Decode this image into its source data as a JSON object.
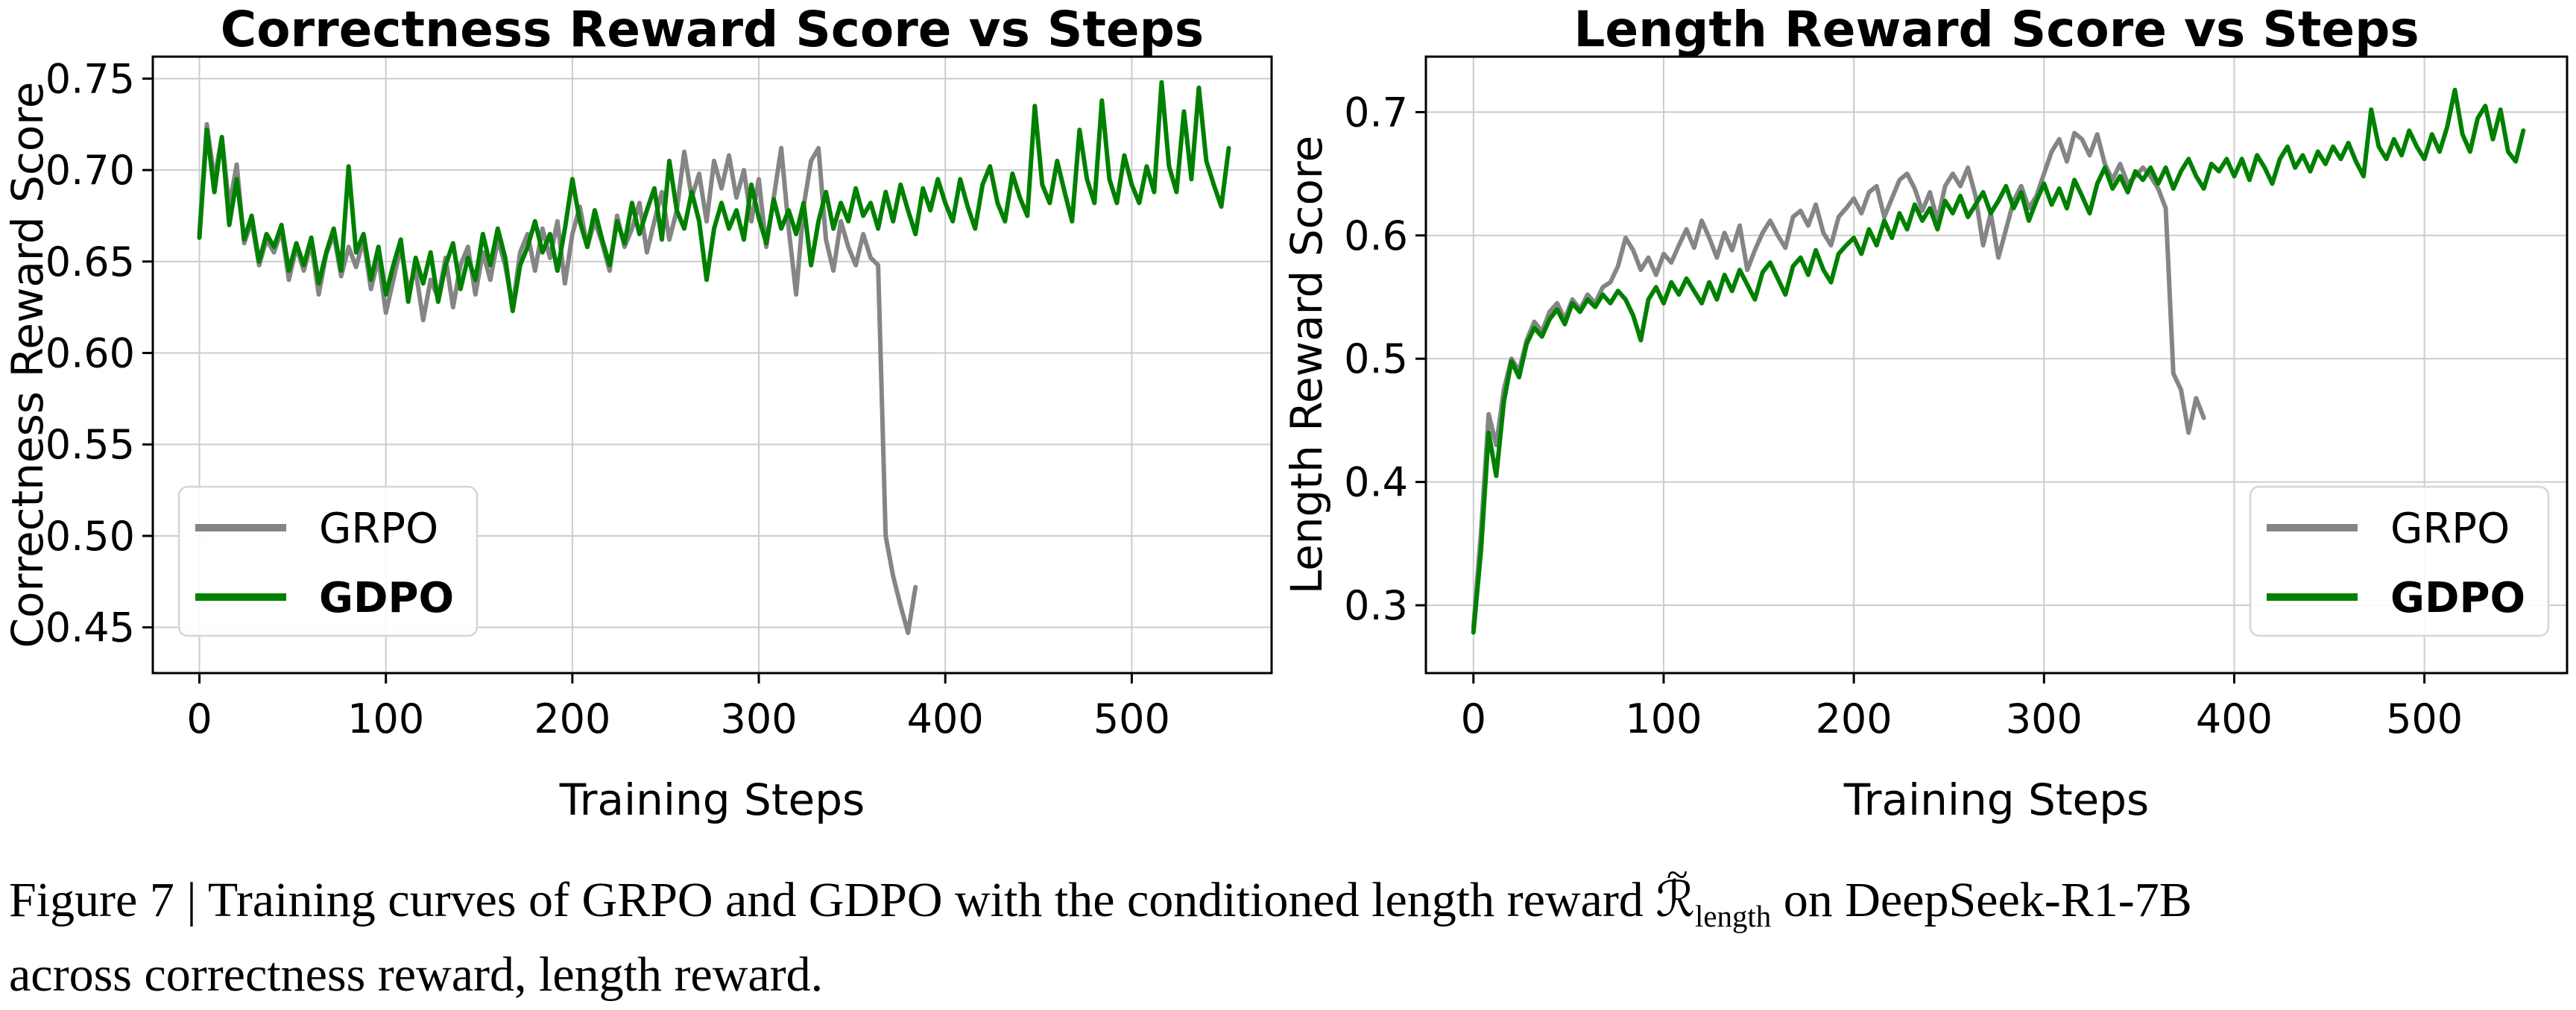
{
  "figure": {
    "caption": {
      "line1_before_math": "Figure 7 | Training curves of GRPO and GDPO with the conditioned length reward ",
      "math_symbol": "ℛ",
      "math_tilde": "~",
      "math_subscript": "length",
      "line1_after_math": " on DeepSeek-R1-7B",
      "line2": "across correctness reward, length reward."
    }
  },
  "colors": {
    "grpo": "#858585",
    "gdpo": "#008000",
    "grid": "#cccccc",
    "spine": "#000000",
    "legend_border": "#d5d5d5",
    "background": "#ffffff"
  },
  "chart_data": [
    {
      "type": "line",
      "title": "Correctness Reward Score vs Steps",
      "xlabel": "Training Steps",
      "ylabel": "Correctness Reward Score",
      "xlim": [
        -25,
        575
      ],
      "ylim": [
        0.425,
        0.762
      ],
      "xticks": [
        0,
        100,
        200,
        300,
        400,
        500
      ],
      "xtick_labels": [
        "0",
        "100",
        "200",
        "300",
        "400",
        "500"
      ],
      "yticks": [
        0.45,
        0.5,
        0.55,
        0.6,
        0.65,
        0.7,
        0.75
      ],
      "ytick_labels": [
        "0.45",
        "0.50",
        "0.55",
        "0.60",
        "0.65",
        "0.70",
        "0.75"
      ],
      "grid": true,
      "legend_position": "lower left",
      "series": [
        {
          "name": "GRPO",
          "color_key": "grpo",
          "bold": false,
          "x_start": 0,
          "x_step": 4,
          "values": [
            0.665,
            0.725,
            0.695,
            0.718,
            0.68,
            0.703,
            0.66,
            0.672,
            0.648,
            0.662,
            0.655,
            0.667,
            0.64,
            0.658,
            0.645,
            0.66,
            0.632,
            0.654,
            0.665,
            0.642,
            0.658,
            0.647,
            0.662,
            0.635,
            0.652,
            0.622,
            0.64,
            0.658,
            0.635,
            0.645,
            0.618,
            0.64,
            0.63,
            0.652,
            0.625,
            0.648,
            0.658,
            0.632,
            0.655,
            0.64,
            0.662,
            0.648,
            0.625,
            0.655,
            0.665,
            0.645,
            0.668,
            0.652,
            0.672,
            0.638,
            0.665,
            0.68,
            0.658,
            0.672,
            0.66,
            0.645,
            0.675,
            0.658,
            0.668,
            0.682,
            0.655,
            0.672,
            0.688,
            0.662,
            0.678,
            0.71,
            0.685,
            0.698,
            0.672,
            0.705,
            0.69,
            0.708,
            0.685,
            0.7,
            0.672,
            0.695,
            0.658,
            0.685,
            0.712,
            0.668,
            0.632,
            0.68,
            0.705,
            0.712,
            0.662,
            0.645,
            0.672,
            0.658,
            0.648,
            0.665,
            0.652,
            0.648,
            0.5,
            0.478,
            0.462,
            0.447,
            0.472
          ]
        },
        {
          "name": "GDPO",
          "color_key": "gdpo",
          "bold": true,
          "x_start": 0,
          "x_step": 4,
          "values": [
            0.663,
            0.722,
            0.688,
            0.718,
            0.67,
            0.695,
            0.662,
            0.675,
            0.65,
            0.665,
            0.658,
            0.67,
            0.645,
            0.66,
            0.648,
            0.663,
            0.638,
            0.655,
            0.668,
            0.645,
            0.702,
            0.655,
            0.665,
            0.64,
            0.658,
            0.632,
            0.648,
            0.662,
            0.628,
            0.652,
            0.638,
            0.655,
            0.628,
            0.648,
            0.66,
            0.635,
            0.652,
            0.64,
            0.665,
            0.648,
            0.668,
            0.652,
            0.623,
            0.648,
            0.658,
            0.672,
            0.655,
            0.665,
            0.645,
            0.668,
            0.695,
            0.672,
            0.658,
            0.678,
            0.662,
            0.648,
            0.672,
            0.66,
            0.682,
            0.665,
            0.678,
            0.69,
            0.662,
            0.705,
            0.678,
            0.668,
            0.688,
            0.672,
            0.64,
            0.668,
            0.682,
            0.668,
            0.678,
            0.662,
            0.692,
            0.674,
            0.66,
            0.684,
            0.668,
            0.678,
            0.665,
            0.682,
            0.648,
            0.672,
            0.688,
            0.668,
            0.682,
            0.672,
            0.69,
            0.675,
            0.682,
            0.668,
            0.688,
            0.672,
            0.692,
            0.678,
            0.665,
            0.69,
            0.678,
            0.695,
            0.682,
            0.672,
            0.695,
            0.68,
            0.668,
            0.692,
            0.702,
            0.682,
            0.672,
            0.698,
            0.685,
            0.675,
            0.735,
            0.692,
            0.682,
            0.705,
            0.688,
            0.672,
            0.722,
            0.695,
            0.682,
            0.738,
            0.695,
            0.682,
            0.708,
            0.692,
            0.682,
            0.702,
            0.688,
            0.748,
            0.702,
            0.688,
            0.732,
            0.695,
            0.745,
            0.705,
            0.692,
            0.68,
            0.712
          ]
        }
      ]
    },
    {
      "type": "line",
      "title": "Length Reward Score vs Steps",
      "xlabel": "Training Steps",
      "ylabel": "Length Reward Score",
      "xlim": [
        -25,
        575
      ],
      "ylim": [
        0.245,
        0.745
      ],
      "xticks": [
        0,
        100,
        200,
        300,
        400,
        500
      ],
      "xtick_labels": [
        "0",
        "100",
        "200",
        "300",
        "400",
        "500"
      ],
      "yticks": [
        0.3,
        0.4,
        0.5,
        0.6,
        0.7
      ],
      "ytick_labels": [
        "0.3",
        "0.4",
        "0.5",
        "0.6",
        "0.7"
      ],
      "grid": true,
      "legend_position": "lower right",
      "series": [
        {
          "name": "GRPO",
          "color_key": "grpo",
          "bold": false,
          "x_start": 0,
          "x_step": 4,
          "values": [
            0.282,
            0.36,
            0.455,
            0.43,
            0.475,
            0.5,
            0.49,
            0.515,
            0.53,
            0.522,
            0.538,
            0.545,
            0.532,
            0.548,
            0.54,
            0.552,
            0.545,
            0.558,
            0.562,
            0.575,
            0.598,
            0.588,
            0.572,
            0.582,
            0.568,
            0.585,
            0.578,
            0.592,
            0.605,
            0.59,
            0.612,
            0.598,
            0.582,
            0.602,
            0.588,
            0.608,
            0.572,
            0.588,
            0.602,
            0.612,
            0.6,
            0.59,
            0.615,
            0.62,
            0.608,
            0.625,
            0.602,
            0.592,
            0.615,
            0.622,
            0.63,
            0.618,
            0.635,
            0.64,
            0.615,
            0.63,
            0.645,
            0.65,
            0.638,
            0.62,
            0.635,
            0.612,
            0.64,
            0.65,
            0.64,
            0.655,
            0.632,
            0.592,
            0.618,
            0.582,
            0.605,
            0.628,
            0.64,
            0.622,
            0.632,
            0.65,
            0.668,
            0.678,
            0.66,
            0.683,
            0.678,
            0.665,
            0.682,
            0.658,
            0.645,
            0.658,
            0.642,
            0.648,
            0.655,
            0.648,
            0.638,
            0.622,
            0.488,
            0.475,
            0.44,
            0.468,
            0.452
          ]
        },
        {
          "name": "GDPO",
          "color_key": "gdpo",
          "bold": true,
          "x_start": 0,
          "x_step": 4,
          "values": [
            0.278,
            0.345,
            0.44,
            0.405,
            0.465,
            0.498,
            0.485,
            0.512,
            0.525,
            0.518,
            0.532,
            0.54,
            0.528,
            0.545,
            0.538,
            0.548,
            0.542,
            0.552,
            0.545,
            0.555,
            0.548,
            0.535,
            0.515,
            0.548,
            0.558,
            0.545,
            0.562,
            0.552,
            0.565,
            0.555,
            0.545,
            0.562,
            0.548,
            0.568,
            0.555,
            0.572,
            0.56,
            0.548,
            0.57,
            0.578,
            0.565,
            0.552,
            0.575,
            0.582,
            0.568,
            0.588,
            0.572,
            0.562,
            0.585,
            0.592,
            0.598,
            0.585,
            0.605,
            0.592,
            0.612,
            0.598,
            0.618,
            0.605,
            0.625,
            0.612,
            0.622,
            0.605,
            0.628,
            0.618,
            0.632,
            0.615,
            0.625,
            0.635,
            0.618,
            0.628,
            0.64,
            0.622,
            0.635,
            0.612,
            0.628,
            0.642,
            0.625,
            0.638,
            0.622,
            0.645,
            0.632,
            0.618,
            0.642,
            0.655,
            0.638,
            0.648,
            0.635,
            0.652,
            0.645,
            0.655,
            0.642,
            0.655,
            0.638,
            0.652,
            0.662,
            0.648,
            0.638,
            0.658,
            0.652,
            0.662,
            0.648,
            0.662,
            0.645,
            0.665,
            0.655,
            0.642,
            0.662,
            0.672,
            0.655,
            0.665,
            0.652,
            0.668,
            0.658,
            0.672,
            0.662,
            0.675,
            0.66,
            0.648,
            0.702,
            0.672,
            0.662,
            0.678,
            0.665,
            0.685,
            0.672,
            0.662,
            0.682,
            0.668,
            0.688,
            0.718,
            0.682,
            0.668,
            0.695,
            0.705,
            0.678,
            0.702,
            0.668,
            0.66,
            0.685
          ]
        }
      ]
    }
  ]
}
